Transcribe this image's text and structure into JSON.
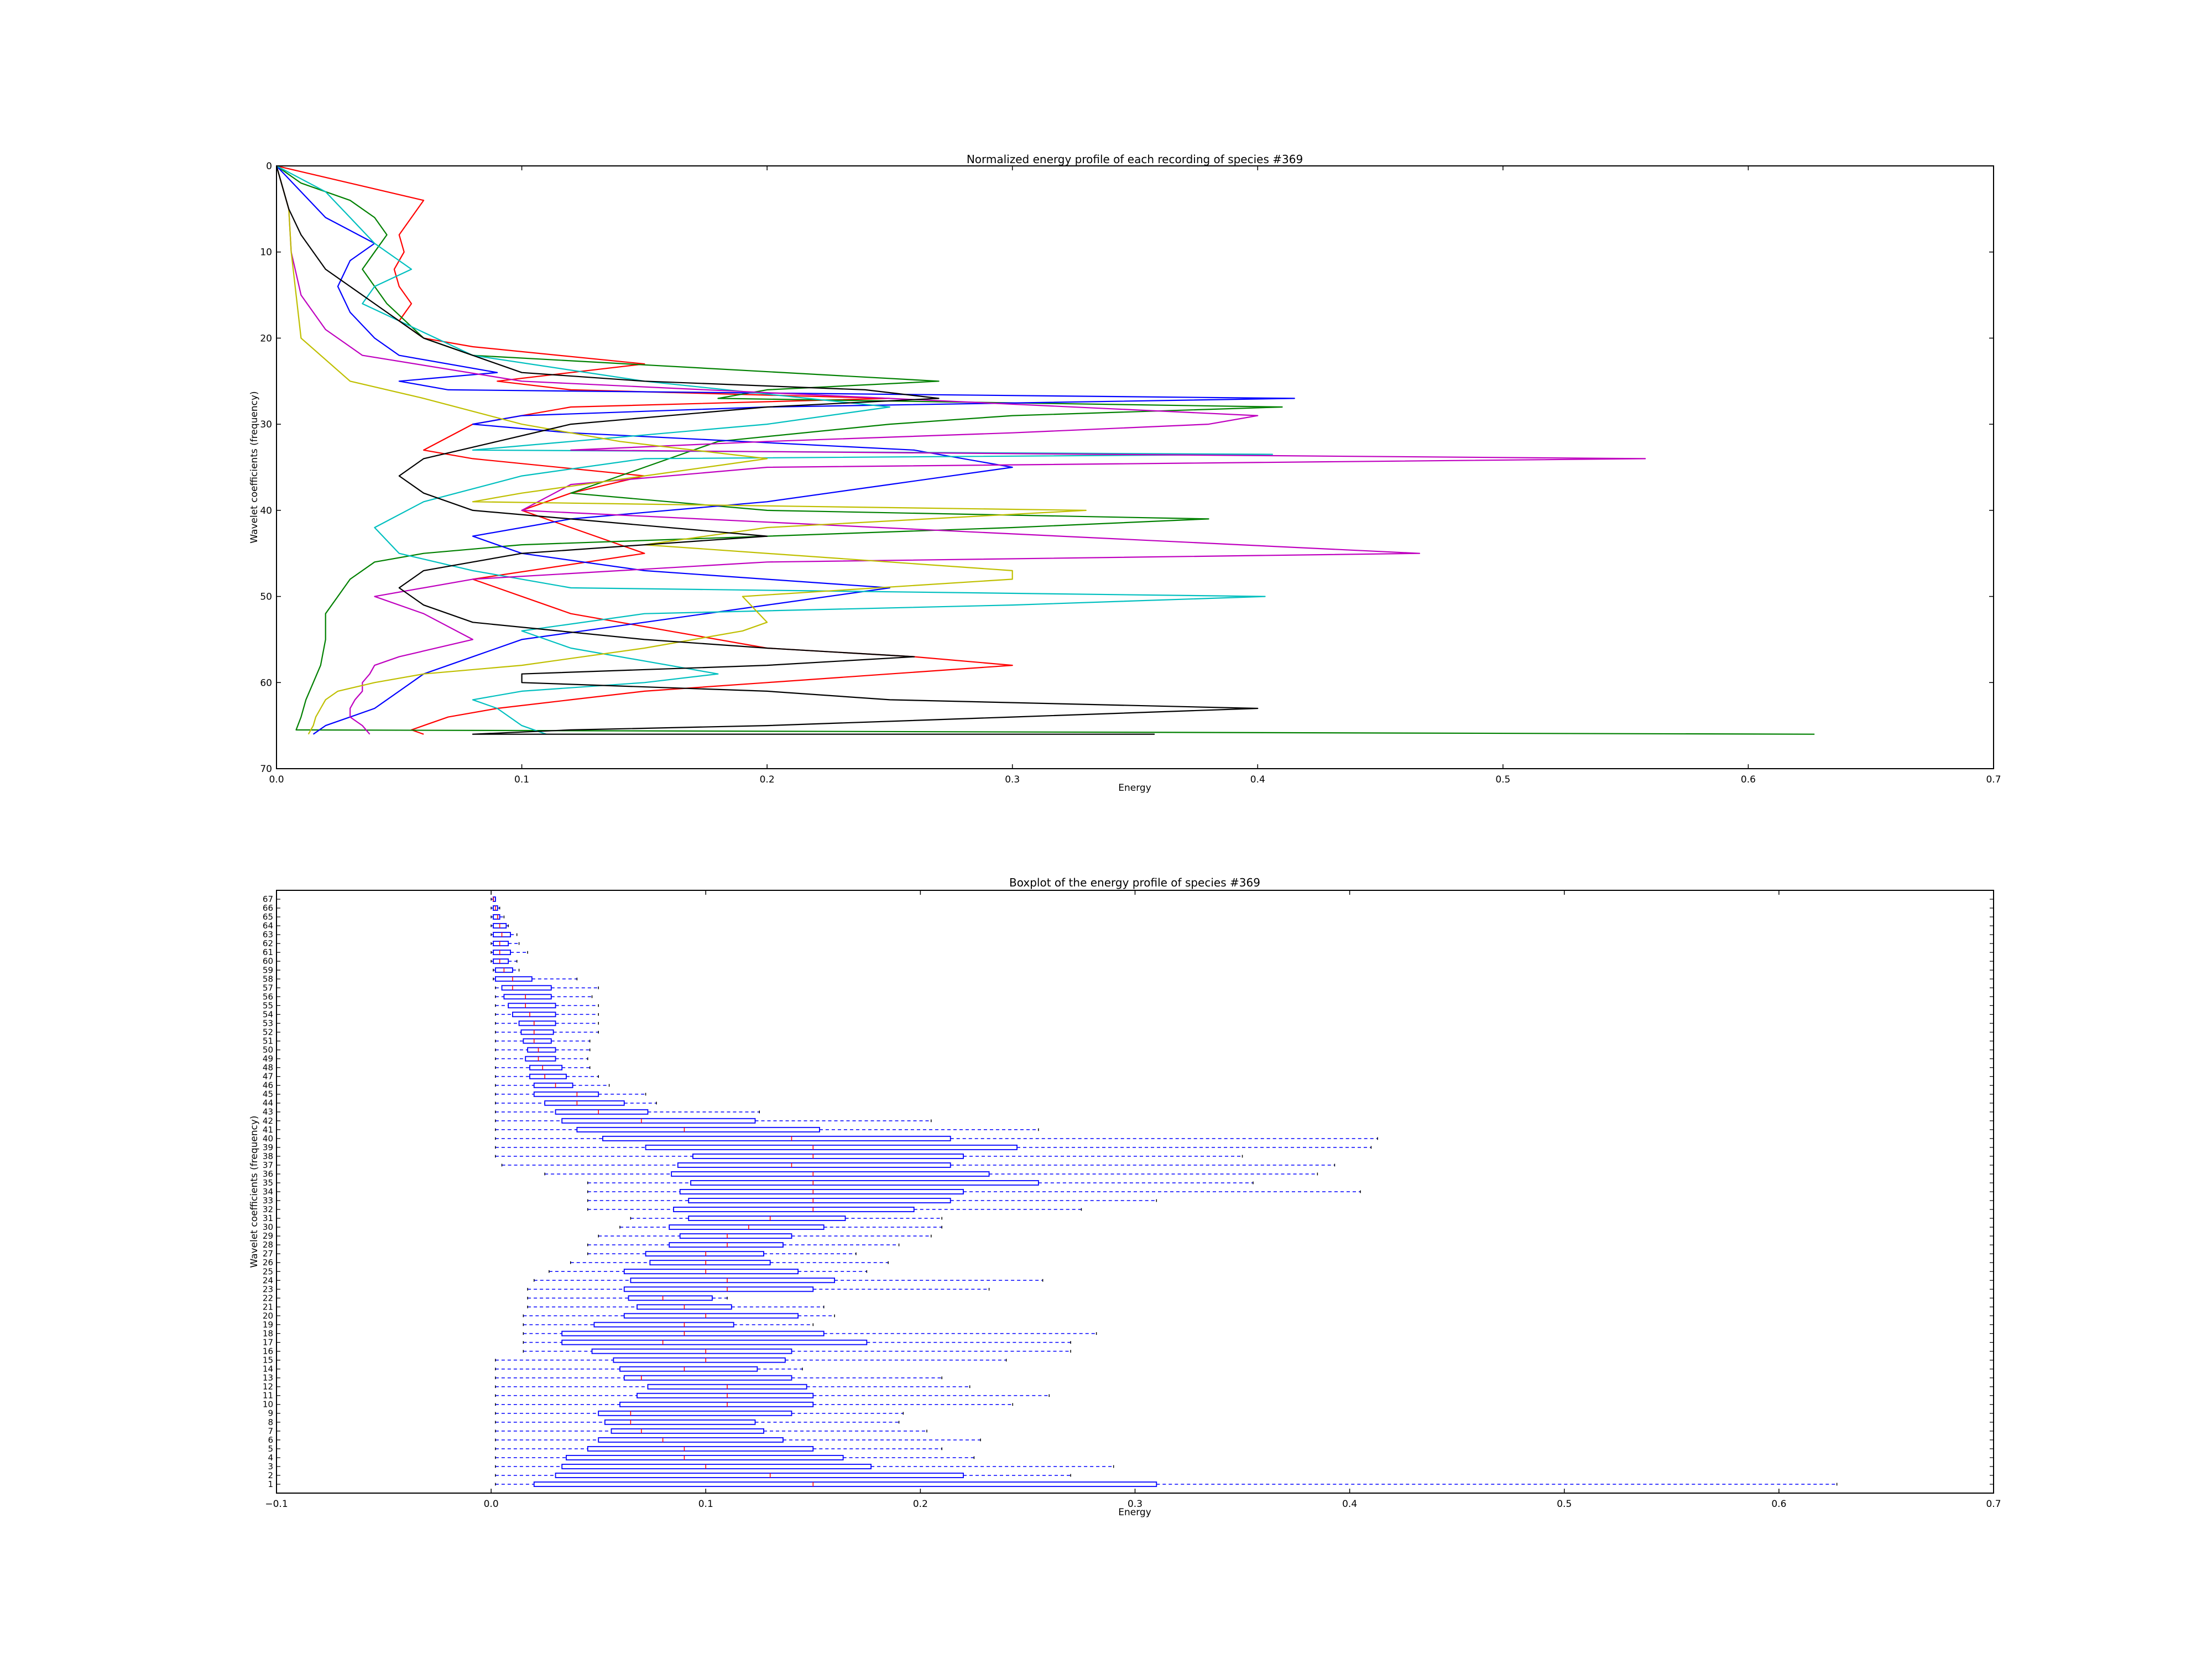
{
  "chart_data": [
    {
      "type": "line",
      "title": "Normalized energy profile of each recording of species #369",
      "xlabel": "Energy",
      "ylabel": "Wavelet coefficients (frequency)",
      "xlim": [
        0.0,
        0.7
      ],
      "ylim": [
        70,
        0
      ],
      "xticks": [
        "0.0",
        "0.1",
        "0.2",
        "0.3",
        "0.4",
        "0.5",
        "0.6",
        "0.7"
      ],
      "yticks": [
        "0",
        "10",
        "20",
        "30",
        "40",
        "50",
        "60",
        "70"
      ],
      "grid": false,
      "legend": "none",
      "series": [
        {
          "color": "#ff0000",
          "x": [
            0.0,
            0.06,
            0.055,
            0.05,
            0.052,
            0.048,
            0.05,
            0.055,
            0.05,
            0.06,
            0.08,
            0.15,
            0.12,
            0.09,
            0.12,
            0.25,
            0.12,
            0.08,
            0.06,
            0.08,
            0.15,
            0.12,
            0.1,
            0.12,
            0.15,
            0.08,
            0.1,
            0.12,
            0.16,
            0.2,
            0.26,
            0.3,
            0.25,
            0.2,
            0.15,
            0.12,
            0.09,
            0.07,
            0.06,
            0.055,
            0.06
          ],
          "y": [
            0,
            4,
            6,
            8,
            10,
            12,
            14,
            16,
            18,
            20,
            21,
            23,
            24,
            25,
            26,
            27,
            28,
            30,
            33,
            34,
            36,
            38,
            40,
            42,
            45,
            48,
            50,
            52,
            54,
            56,
            57,
            58,
            59,
            60,
            61,
            62,
            63,
            64,
            65,
            65.5,
            66
          ]
        },
        {
          "color": "#008000",
          "x": [
            0.0,
            0.01,
            0.03,
            0.04,
            0.045,
            0.04,
            0.035,
            0.04,
            0.045,
            0.06,
            0.08,
            0.27,
            0.2,
            0.18,
            0.41,
            0.3,
            0.25,
            0.18,
            0.15,
            0.12,
            0.2,
            0.38,
            0.3,
            0.2,
            0.1,
            0.06,
            0.04,
            0.03,
            0.025,
            0.02,
            0.02,
            0.018,
            0.015,
            0.012,
            0.01,
            0.008,
            0.627
          ],
          "y": [
            0,
            2,
            4,
            6,
            8,
            10,
            12,
            14,
            16,
            20,
            22,
            25,
            26,
            27,
            28,
            29,
            30,
            32,
            35,
            38,
            40,
            41,
            42,
            43,
            44,
            45,
            46,
            48,
            50,
            52,
            55,
            58,
            60,
            62,
            64,
            65.5,
            66
          ]
        },
        {
          "color": "#0000ff",
          "x": [
            0.0,
            0.01,
            0.02,
            0.04,
            0.03,
            0.025,
            0.03,
            0.04,
            0.05,
            0.09,
            0.05,
            0.07,
            0.415,
            0.2,
            0.1,
            0.08,
            0.12,
            0.26,
            0.3,
            0.25,
            0.2,
            0.12,
            0.08,
            0.1,
            0.15,
            0.25,
            0.2,
            0.15,
            0.1,
            0.08,
            0.06,
            0.05,
            0.04,
            0.03,
            0.02,
            0.015
          ],
          "y": [
            0,
            3,
            6,
            9,
            11,
            14,
            17,
            20,
            22,
            24,
            25,
            26,
            27,
            28,
            29,
            30,
            31,
            33,
            35,
            37,
            39,
            41,
            43,
            45,
            47,
            49,
            51,
            53,
            55,
            57,
            59,
            61,
            63,
            64,
            65,
            66
          ]
        },
        {
          "color": "#00bfbf",
          "x": [
            0.0,
            0.02,
            0.03,
            0.04,
            0.055,
            0.04,
            0.035,
            0.05,
            0.08,
            0.15,
            0.25,
            0.2,
            0.12,
            0.08,
            0.406,
            0.15,
            0.1,
            0.06,
            0.04,
            0.05,
            0.08,
            0.12,
            0.403,
            0.3,
            0.15,
            0.1,
            0.12,
            0.16,
            0.18,
            0.15,
            0.1,
            0.08,
            0.09,
            0.1,
            0.11
          ],
          "y": [
            0,
            3,
            6,
            9,
            12,
            14,
            16,
            18,
            22,
            25,
            28,
            30,
            32,
            33,
            33.5,
            34,
            36,
            39,
            42,
            45,
            47,
            49,
            50,
            51,
            52,
            54,
            56,
            58,
            59,
            60,
            61,
            62,
            63,
            65,
            66
          ]
        },
        {
          "color": "#bf00bf",
          "x": [
            0.0,
            0.005,
            0.006,
            0.01,
            0.02,
            0.03,
            0.035,
            0.1,
            0.4,
            0.38,
            0.3,
            0.2,
            0.12,
            0.558,
            0.2,
            0.12,
            0.1,
            0.466,
            0.2,
            0.08,
            0.04,
            0.06,
            0.08,
            0.05,
            0.04,
            0.038,
            0.035,
            0.035,
            0.032,
            0.03,
            0.03,
            0.035,
            0.038
          ],
          "y": [
            0,
            5,
            10,
            15,
            19,
            21,
            22,
            25,
            29,
            30,
            31,
            32,
            33,
            34,
            35,
            37,
            40,
            45,
            46,
            48,
            50,
            52,
            55,
            57,
            58,
            59,
            60,
            61,
            62,
            63,
            64,
            65,
            66
          ]
        },
        {
          "color": "#bfbf00",
          "x": [
            0.0,
            0.005,
            0.006,
            0.008,
            0.01,
            0.03,
            0.06,
            0.1,
            0.14,
            0.2,
            0.15,
            0.1,
            0.08,
            0.33,
            0.2,
            0.15,
            0.3,
            0.3,
            0.19,
            0.2,
            0.19,
            0.15,
            0.1,
            0.06,
            0.04,
            0.025,
            0.02,
            0.018,
            0.016,
            0.015,
            0.013
          ],
          "y": [
            0,
            5,
            10,
            15,
            20,
            25,
            27,
            30,
            32,
            34,
            36,
            38,
            39,
            40,
            42,
            44,
            47,
            48,
            50,
            53,
            54,
            56,
            58,
            59,
            60,
            61,
            62,
            63,
            64,
            65,
            66
          ]
        },
        {
          "color": "#000000",
          "x": [
            0.0,
            0.005,
            0.01,
            0.02,
            0.04,
            0.06,
            0.08,
            0.1,
            0.15,
            0.24,
            0.27,
            0.2,
            0.12,
            0.09,
            0.06,
            0.05,
            0.06,
            0.08,
            0.2,
            0.1,
            0.06,
            0.05,
            0.06,
            0.08,
            0.15,
            0.2,
            0.26,
            0.2,
            0.1,
            0.1,
            0.2,
            0.25,
            0.4,
            0.3,
            0.2,
            0.12,
            0.08,
            0.358
          ],
          "y": [
            0,
            5,
            8,
            12,
            16,
            20,
            22,
            24,
            25,
            26,
            27,
            28,
            30,
            32,
            34,
            36,
            38,
            40,
            43,
            45,
            47,
            49,
            51,
            53,
            55,
            56,
            57,
            58,
            59,
            60,
            61,
            62,
            63,
            64,
            65,
            65.5,
            66,
            66
          ]
        }
      ]
    },
    {
      "type": "boxplot",
      "orientation": "horizontal",
      "title": "Boxplot of the energy profile of species #369",
      "xlabel": "Energy",
      "ylabel": "Wavelet coefficients (frequency)",
      "xlim": [
        -0.1,
        0.7
      ],
      "xticks": [
        "−0.1",
        "0.0",
        "0.1",
        "0.2",
        "0.3",
        "0.4",
        "0.5",
        "0.6",
        "0.7"
      ],
      "grid": false,
      "legend": "none",
      "color": "#0000ff",
      "categories": [
        "1",
        "2",
        "3",
        "4",
        "5",
        "6",
        "7",
        "8",
        "9",
        "10",
        "11",
        "12",
        "13",
        "14",
        "15",
        "16",
        "17",
        "18",
        "19",
        "20",
        "21",
        "22",
        "23",
        "24",
        "25",
        "26",
        "27",
        "28",
        "29",
        "30",
        "31",
        "32",
        "33",
        "34",
        "35",
        "36",
        "37",
        "38",
        "39",
        "40",
        "41",
        "42",
        "43",
        "44",
        "45",
        "46",
        "47",
        "48",
        "49",
        "50",
        "51",
        "52",
        "53",
        "54",
        "55",
        "56",
        "57",
        "58",
        "59",
        "60",
        "61",
        "62",
        "63",
        "64",
        "65",
        "66",
        "67"
      ],
      "stats": [
        [
          0.002,
          0.02,
          0.15,
          0.31,
          0.627
        ],
        [
          0.002,
          0.03,
          0.13,
          0.22,
          0.27
        ],
        [
          0.002,
          0.033,
          0.1,
          0.177,
          0.29
        ],
        [
          0.002,
          0.035,
          0.09,
          0.164,
          0.225
        ],
        [
          0.002,
          0.045,
          0.09,
          0.15,
          0.21
        ],
        [
          0.002,
          0.05,
          0.08,
          0.136,
          0.228
        ],
        [
          0.002,
          0.056,
          0.07,
          0.127,
          0.203
        ],
        [
          0.002,
          0.053,
          0.065,
          0.123,
          0.19
        ],
        [
          0.002,
          0.05,
          0.065,
          0.14,
          0.192
        ],
        [
          0.002,
          0.06,
          0.11,
          0.15,
          0.243
        ],
        [
          0.002,
          0.068,
          0.11,
          0.15,
          0.26
        ],
        [
          0.002,
          0.073,
          0.11,
          0.147,
          0.223
        ],
        [
          0.002,
          0.062,
          0.07,
          0.14,
          0.21
        ],
        [
          0.002,
          0.06,
          0.09,
          0.124,
          0.145
        ],
        [
          0.002,
          0.057,
          0.1,
          0.137,
          0.24
        ],
        [
          0.015,
          0.047,
          0.1,
          0.14,
          0.27
        ],
        [
          0.015,
          0.033,
          0.08,
          0.175,
          0.27
        ],
        [
          0.015,
          0.033,
          0.09,
          0.155,
          0.282
        ],
        [
          0.015,
          0.048,
          0.09,
          0.113,
          0.15
        ],
        [
          0.015,
          0.062,
          0.1,
          0.143,
          0.16
        ],
        [
          0.017,
          0.068,
          0.09,
          0.112,
          0.155
        ],
        [
          0.017,
          0.064,
          0.08,
          0.103,
          0.11
        ],
        [
          0.017,
          0.062,
          0.11,
          0.15,
          0.232
        ],
        [
          0.02,
          0.065,
          0.11,
          0.16,
          0.257
        ],
        [
          0.027,
          0.062,
          0.1,
          0.143,
          0.175
        ],
        [
          0.037,
          0.074,
          0.1,
          0.13,
          0.185
        ],
        [
          0.045,
          0.072,
          0.1,
          0.127,
          0.17
        ],
        [
          0.045,
          0.083,
          0.11,
          0.136,
          0.19
        ],
        [
          0.05,
          0.088,
          0.11,
          0.14,
          0.205
        ],
        [
          0.06,
          0.083,
          0.12,
          0.155,
          0.21
        ],
        [
          0.065,
          0.092,
          0.13,
          0.165,
          0.21
        ],
        [
          0.045,
          0.085,
          0.15,
          0.197,
          0.275
        ],
        [
          0.045,
          0.092,
          0.15,
          0.214,
          0.31
        ],
        [
          0.045,
          0.088,
          0.15,
          0.22,
          0.405
        ],
        [
          0.045,
          0.093,
          0.15,
          0.255,
          0.355
        ],
        [
          0.025,
          0.084,
          0.15,
          0.232,
          0.385
        ],
        [
          0.005,
          0.087,
          0.14,
          0.214,
          0.393
        ],
        [
          0.002,
          0.094,
          0.15,
          0.22,
          0.35
        ],
        [
          0.002,
          0.072,
          0.15,
          0.245,
          0.41
        ],
        [
          0.002,
          0.052,
          0.14,
          0.214,
          0.413
        ],
        [
          0.002,
          0.04,
          0.09,
          0.153,
          0.255
        ],
        [
          0.002,
          0.033,
          0.07,
          0.123,
          0.205
        ],
        [
          0.002,
          0.03,
          0.05,
          0.073,
          0.125
        ],
        [
          0.002,
          0.025,
          0.04,
          0.062,
          0.077
        ],
        [
          0.002,
          0.02,
          0.04,
          0.05,
          0.072
        ],
        [
          0.002,
          0.02,
          0.03,
          0.038,
          0.055
        ],
        [
          0.002,
          0.018,
          0.025,
          0.035,
          0.05
        ],
        [
          0.002,
          0.018,
          0.024,
          0.033,
          0.046
        ],
        [
          0.002,
          0.016,
          0.022,
          0.03,
          0.045
        ],
        [
          0.002,
          0.017,
          0.022,
          0.03,
          0.046
        ],
        [
          0.002,
          0.015,
          0.02,
          0.028,
          0.046
        ],
        [
          0.002,
          0.014,
          0.02,
          0.029,
          0.05
        ],
        [
          0.002,
          0.013,
          0.02,
          0.03,
          0.05
        ],
        [
          0.002,
          0.01,
          0.018,
          0.03,
          0.05
        ],
        [
          0.002,
          0.008,
          0.016,
          0.03,
          0.05
        ],
        [
          0.002,
          0.006,
          0.016,
          0.028,
          0.047
        ],
        [
          0.002,
          0.005,
          0.01,
          0.028,
          0.05
        ],
        [
          0.001,
          0.002,
          0.01,
          0.019,
          0.04
        ],
        [
          0.001,
          0.002,
          0.006,
          0.01,
          0.013
        ],
        [
          0.0,
          0.001,
          0.004,
          0.008,
          0.012
        ],
        [
          0.0,
          0.001,
          0.004,
          0.009,
          0.017
        ],
        [
          0.0,
          0.001,
          0.004,
          0.008,
          0.013
        ],
        [
          0.0,
          0.001,
          0.005,
          0.009,
          0.012
        ],
        [
          0.0,
          0.001,
          0.004,
          0.007,
          0.008
        ],
        [
          0.0,
          0.001,
          0.003,
          0.004,
          0.006
        ],
        [
          0.0,
          0.001,
          0.002,
          0.003,
          0.004
        ],
        [
          0.0,
          0.001,
          0.001,
          0.002,
          0.002
        ]
      ]
    }
  ]
}
